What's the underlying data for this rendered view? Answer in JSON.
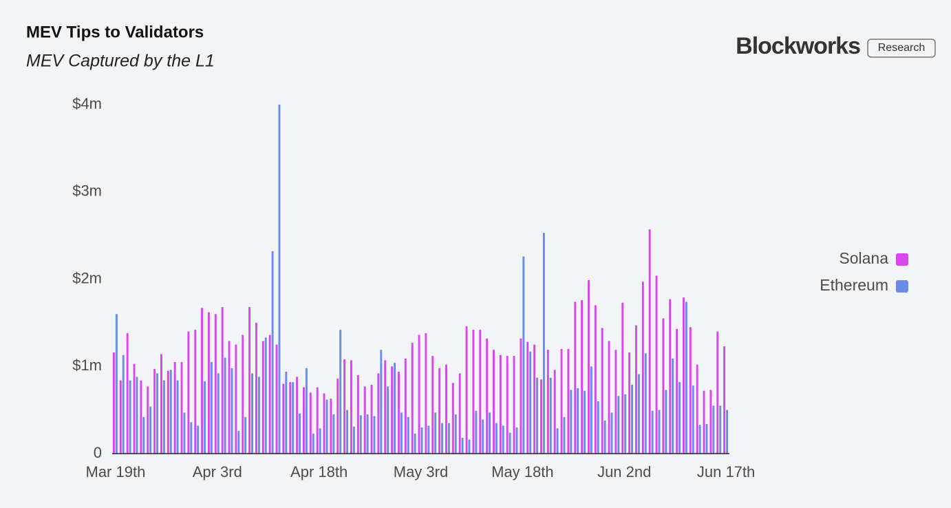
{
  "chart_data": {
    "type": "bar",
    "title": "MEV Tips to Validators",
    "subtitle": "MEV Captured by the L1",
    "brand": "Blockworks",
    "brand_tag": "Research",
    "categories": [
      "Mar 19th",
      null,
      null,
      null,
      null,
      null,
      null,
      null,
      null,
      null,
      null,
      null,
      null,
      null,
      null,
      "Apr 3rd",
      null,
      null,
      null,
      null,
      null,
      null,
      null,
      null,
      null,
      null,
      null,
      null,
      null,
      null,
      "Apr 18th",
      null,
      null,
      null,
      null,
      null,
      null,
      null,
      null,
      null,
      null,
      null,
      null,
      null,
      null,
      "May 3rd",
      null,
      null,
      null,
      null,
      null,
      null,
      null,
      null,
      null,
      null,
      null,
      null,
      null,
      null,
      "May 18th",
      null,
      null,
      null,
      null,
      null,
      null,
      null,
      null,
      null,
      null,
      null,
      null,
      null,
      null,
      "Jun 2nd",
      null,
      null,
      null,
      null,
      null,
      null,
      null,
      null,
      null,
      null,
      null,
      null,
      null,
      null,
      "Jun 17th"
    ],
    "series": [
      {
        "name": "Solana",
        "color": "#d946ef",
        "values": [
          1.16,
          0.84,
          1.38,
          1.03,
          0.84,
          0.77,
          0.97,
          1.14,
          0.95,
          1.05,
          1.05,
          1.4,
          1.42,
          1.67,
          1.62,
          1.6,
          1.68,
          1.29,
          1.25,
          1.36,
          1.68,
          1.5,
          1.29,
          1.36,
          1.25,
          0.8,
          0.82,
          0.88,
          0.76,
          0.7,
          0.76,
          0.69,
          0.63,
          0.86,
          1.08,
          1.07,
          0.9,
          0.77,
          0.79,
          0.92,
          1.07,
          1.0,
          0.94,
          1.09,
          1.27,
          1.36,
          1.38,
          1.12,
          0.98,
          1.02,
          0.81,
          0.92,
          1.46,
          1.42,
          1.42,
          1.32,
          1.19,
          1.13,
          1.12,
          1.12,
          1.32,
          1.28,
          1.25,
          0.85,
          1.19,
          0.96,
          1.2,
          1.2,
          1.74,
          1.76,
          1.99,
          1.7,
          1.44,
          1.29,
          1.19,
          1.73,
          1.16,
          1.47,
          1.97,
          2.57,
          2.04,
          1.55,
          1.77,
          1.43,
          1.79,
          1.45,
          1.02,
          0.72,
          0.73,
          1.4,
          1.23
        ]
      },
      {
        "name": "Ethereum",
        "color": "#6b8ce8",
        "values": [
          1.6,
          1.13,
          0.84,
          0.88,
          0.42,
          0.54,
          0.92,
          0.84,
          0.96,
          0.84,
          0.47,
          0.36,
          0.32,
          0.83,
          1.05,
          0.92,
          1.1,
          0.98,
          0.26,
          0.42,
          0.92,
          0.88,
          1.33,
          2.32,
          4.0,
          0.94,
          0.82,
          0.46,
          0.98,
          0.23,
          0.29,
          0.62,
          0.45,
          1.42,
          0.5,
          0.31,
          0.44,
          0.45,
          0.43,
          1.19,
          0.77,
          1.04,
          0.47,
          0.42,
          0.23,
          0.3,
          0.32,
          0.47,
          0.35,
          0.35,
          0.45,
          0.18,
          0.16,
          0.49,
          0.39,
          0.47,
          0.35,
          0.32,
          0.24,
          0.3,
          2.26,
          1.17,
          0.87,
          2.53,
          0.87,
          0.29,
          0.42,
          0.73,
          0.75,
          0.72,
          1.0,
          0.6,
          0.38,
          0.47,
          0.66,
          0.68,
          0.79,
          0.91,
          1.15,
          0.49,
          0.5,
          0.73,
          1.09,
          0.82,
          1.74,
          0.78,
          0.33,
          0.34,
          0.55,
          0.55,
          0.5
        ]
      }
    ],
    "ylim": [
      0,
      4
    ],
    "yticks": [
      0,
      {
        "value": 1,
        "label": "$1m"
      },
      {
        "value": 2,
        "label": "$2m"
      },
      {
        "value": 3,
        "label": "$3m"
      },
      {
        "value": 4,
        "label": "$4m"
      }
    ],
    "legend": "right"
  }
}
